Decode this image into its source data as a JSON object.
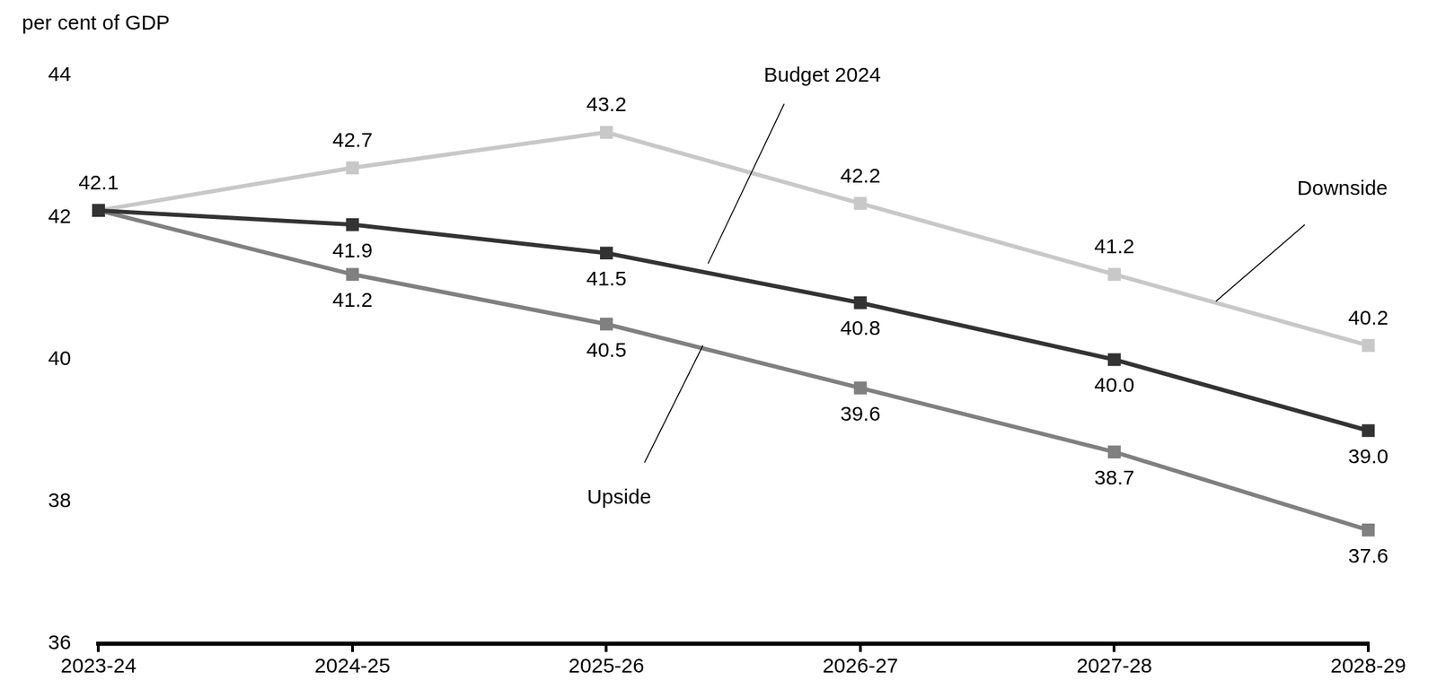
{
  "chart_data": {
    "type": "line",
    "y_label": "per cent of GDP",
    "categories": [
      "2023-24",
      "2024-25",
      "2025-26",
      "2026-27",
      "2027-28",
      "2028-29"
    ],
    "series": [
      {
        "name": "Downside",
        "color": "#c8c8c8",
        "marker": "square",
        "values": [
          42.1,
          42.7,
          43.2,
          42.2,
          41.2,
          40.2
        ]
      },
      {
        "name": "Budget 2024",
        "color": "#333333",
        "marker": "square",
        "values": [
          42.1,
          41.9,
          41.5,
          40.8,
          40.0,
          39.0
        ],
        "value_labels": [
          null,
          "41.9",
          "41.5",
          "40.8",
          "40.0",
          "39.0"
        ]
      },
      {
        "name": "Upside",
        "color": "#808080",
        "marker": "square",
        "values": [
          42.1,
          41.2,
          40.5,
          39.6,
          38.7,
          37.6
        ],
        "value_labels": [
          null,
          "41.2",
          "40.5",
          "39.6",
          "38.7",
          "37.6"
        ]
      }
    ],
    "ylim": [
      36,
      44
    ],
    "yticks": [
      36,
      38,
      40,
      42,
      44
    ],
    "grid": false,
    "data_labels": true
  }
}
